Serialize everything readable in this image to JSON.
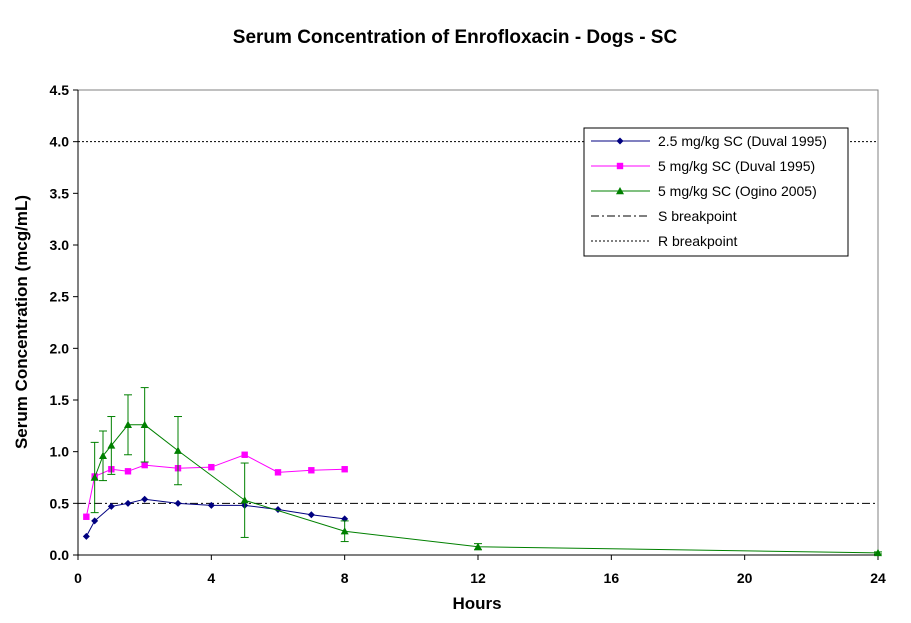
{
  "chart_data": {
    "type": "line",
    "title": "Serum Concentration of Enrofloxacin - Dogs - SC",
    "xlabel": "Hours",
    "ylabel": "Serum Concentration (mcg/mL)",
    "xlim": [
      0,
      24
    ],
    "ylim": [
      0,
      4.5
    ],
    "xticks": [
      0,
      4,
      8,
      12,
      16,
      20,
      24
    ],
    "yticks": [
      0.0,
      0.5,
      1.0,
      1.5,
      2.0,
      2.5,
      3.0,
      3.5,
      4.0,
      4.5
    ],
    "xtick_labels": [
      "0",
      "4",
      "8",
      "12",
      "16",
      "20",
      "24"
    ],
    "ytick_labels": [
      "0.0",
      "0.5",
      "1.0",
      "1.5",
      "2.0",
      "2.5",
      "3.0",
      "3.5",
      "4.0",
      "4.5"
    ],
    "grid": false,
    "legend_position": "top-right",
    "series": [
      {
        "name": "2.5 mg/kg SC (Duval 1995)",
        "color": "#000080",
        "marker": "diamond",
        "x": [
          0.25,
          0.5,
          1,
          1.5,
          2,
          3,
          4,
          5,
          6,
          7,
          8
        ],
        "y": [
          0.18,
          0.33,
          0.47,
          0.5,
          0.54,
          0.5,
          0.48,
          0.48,
          0.44,
          0.39,
          0.35
        ]
      },
      {
        "name": "5 mg/kg SC (Duval 1995)",
        "color": "#FF00FF",
        "marker": "square",
        "x": [
          0.25,
          0.5,
          1,
          1.5,
          2,
          3,
          4,
          5,
          6,
          7,
          8
        ],
        "y": [
          0.37,
          0.76,
          0.83,
          0.81,
          0.87,
          0.84,
          0.85,
          0.97,
          0.8,
          0.82,
          0.83
        ]
      },
      {
        "name": "5 mg/kg SC (Ogino 2005)",
        "color": "#008000",
        "marker": "triangle",
        "x": [
          0.5,
          0.75,
          1,
          1.5,
          2,
          3,
          5,
          8,
          12,
          24
        ],
        "y": [
          0.75,
          0.96,
          1.06,
          1.26,
          1.26,
          1.01,
          0.53,
          0.23,
          0.08,
          0.02
        ],
        "error": [
          0.34,
          0.24,
          0.28,
          0.29,
          0.36,
          0.33,
          0.36,
          0.1,
          0.03,
          0.01
        ]
      }
    ],
    "reference_lines": [
      {
        "name": "S breakpoint",
        "y": 0.5,
        "style": "dash-dot",
        "color": "#000000"
      },
      {
        "name": "R breakpoint",
        "y": 4.0,
        "style": "dotted",
        "color": "#000000"
      }
    ]
  }
}
